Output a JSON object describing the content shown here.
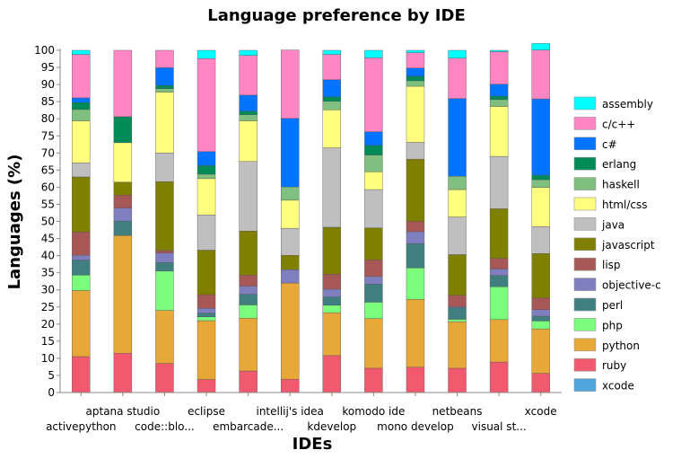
{
  "chart_data": {
    "type": "bar",
    "stacked": true,
    "title": "Language preference by IDE",
    "xlabel": "IDEs",
    "ylabel": "Languages (%)",
    "ylim": [
      0,
      100
    ],
    "yticks": [
      0,
      5,
      10,
      15,
      20,
      25,
      30,
      35,
      40,
      45,
      50,
      55,
      60,
      65,
      70,
      75,
      80,
      85,
      90,
      95,
      100
    ],
    "legend_position": "right",
    "categories": [
      "activepython",
      "aptana studio",
      "code::blo...",
      "eclipse",
      "embarcade...",
      "intellij's idea",
      "kdevelop",
      "komodo ide",
      "mono develop",
      "netbeans",
      "visual st...",
      "xcode"
    ],
    "series": [
      {
        "name": "xcode",
        "color": "#4ea6dc",
        "values": [
          0,
          0,
          0,
          0,
          0,
          0,
          0,
          0,
          0,
          0,
          0,
          0
        ]
      },
      {
        "name": "ruby",
        "color": "#f15a6e",
        "values": [
          10.5,
          11.5,
          8.5,
          3.8,
          6.3,
          3.9,
          10.8,
          7.1,
          7.4,
          7.1,
          8.9,
          5.6
        ]
      },
      {
        "name": "python",
        "color": "#e8a838",
        "values": [
          19.3,
          34.4,
          15.5,
          17.2,
          15.4,
          28.1,
          12.5,
          14.5,
          19.8,
          13.6,
          12.4,
          13.0
        ]
      },
      {
        "name": "php",
        "color": "#7cfc7c",
        "values": [
          4.5,
          0,
          11.5,
          1.1,
          3.9,
          0,
          2.2,
          4.8,
          9.2,
          0.7,
          9.6,
          2.3
        ]
      },
      {
        "name": "perl",
        "color": "#3f7f7f",
        "values": [
          4.4,
          4.2,
          2.5,
          1.1,
          3.1,
          0,
          2.4,
          5.3,
          7.1,
          3.4,
          3.3,
          1.4
        ]
      },
      {
        "name": "objective-c",
        "color": "#7f7fbf",
        "values": [
          1.4,
          3.8,
          2.8,
          1.4,
          2.4,
          3.9,
          2.3,
          2.2,
          3.5,
          0.3,
          1.9,
          1.9
        ]
      },
      {
        "name": "lisp",
        "color": "#a85757",
        "values": [
          6.8,
          3.8,
          0.7,
          4.0,
          3.2,
          0,
          4.4,
          4.9,
          3.0,
          3.3,
          3.1,
          3.4
        ]
      },
      {
        "name": "javascript",
        "color": "#7f7f00",
        "values": [
          16.1,
          3.8,
          20.1,
          13.0,
          12.9,
          4.2,
          13.7,
          9.3,
          18.2,
          11.9,
          14.5,
          13.0
        ]
      },
      {
        "name": "java",
        "color": "#bfbfbf",
        "values": [
          4.1,
          0,
          8.4,
          10.3,
          20.3,
          7.9,
          23.2,
          11.2,
          4.9,
          11.0,
          15.3,
          7.9
        ]
      },
      {
        "name": "html/css",
        "color": "#ffff7f",
        "values": [
          12.3,
          11.5,
          17.8,
          10.6,
          11.9,
          8.2,
          11.1,
          5.2,
          16.4,
          8.0,
          14.6,
          11.4
        ]
      },
      {
        "name": "haskell",
        "color": "#7fbf7f",
        "values": [
          3.3,
          0,
          1.0,
          1.3,
          1.8,
          3.9,
          2.5,
          4.9,
          1.6,
          3.9,
          2.0,
          2.3
        ]
      },
      {
        "name": "erlang",
        "color": "#008b57",
        "values": [
          2.0,
          7.6,
          0.9,
          2.5,
          1.0,
          0,
          1.3,
          2.8,
          1.3,
          0,
          1.0,
          1.3
        ]
      },
      {
        "name": "c#",
        "color": "#0073ff",
        "values": [
          1.4,
          0,
          5.2,
          4.1,
          4.7,
          20.0,
          5.0,
          4.0,
          2.4,
          22.7,
          3.5,
          22.3
        ]
      },
      {
        "name": "c/c++",
        "color": "#ff86c3",
        "values": [
          12.7,
          19.4,
          5.1,
          27.2,
          11.6,
          20.0,
          7.4,
          21.6,
          4.5,
          11.8,
          9.5,
          14.3
        ]
      },
      {
        "name": "assembly",
        "color": "#00ffff",
        "values": [
          1.2,
          0,
          0,
          2.4,
          1.5,
          0,
          1.2,
          2.2,
          0.7,
          2.3,
          0.4,
          1.9
        ]
      }
    ]
  }
}
